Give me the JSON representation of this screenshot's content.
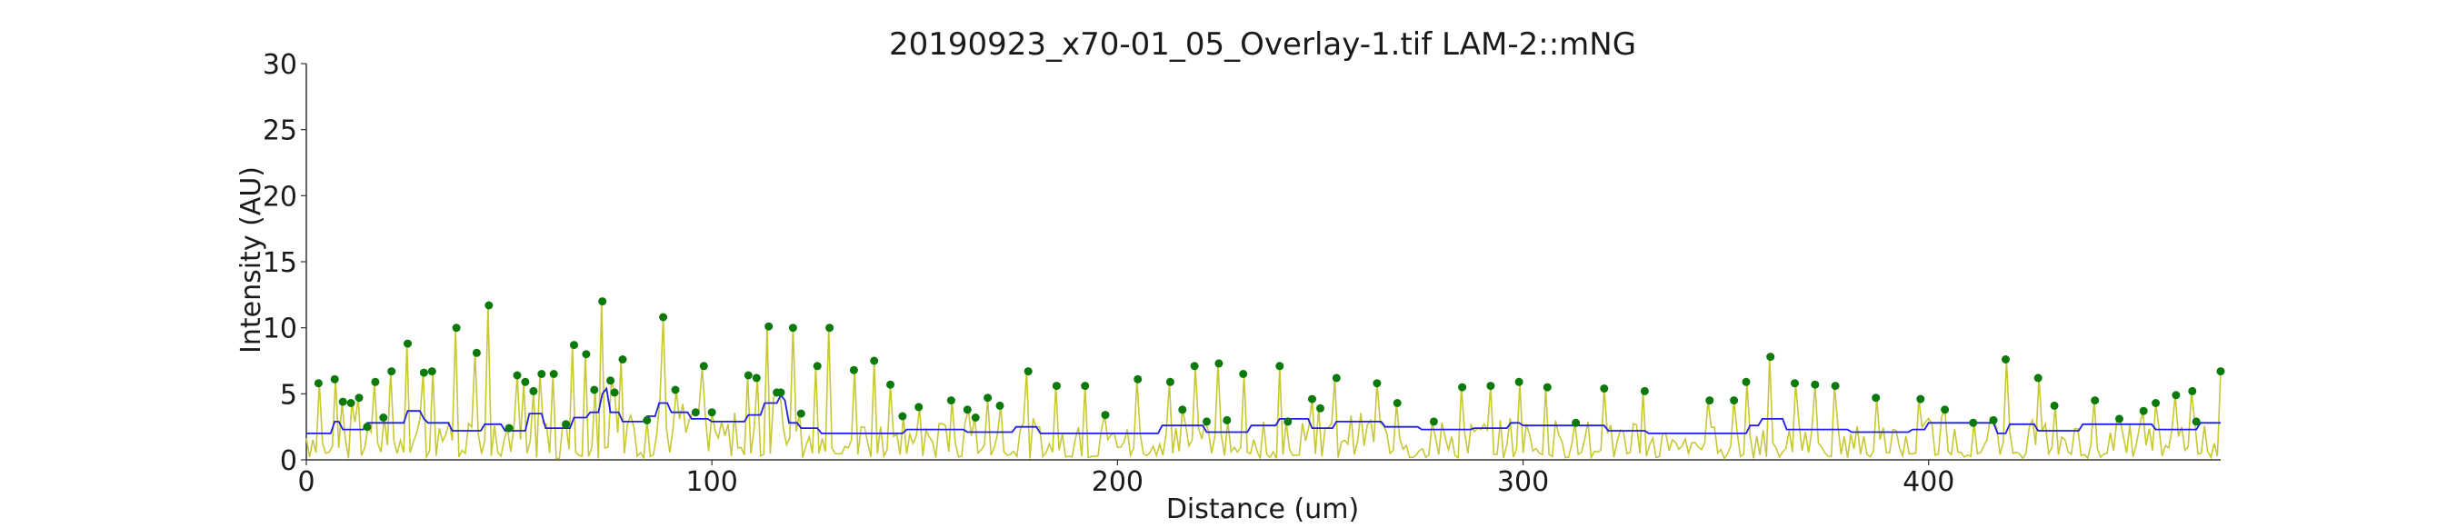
{
  "chart_data": {
    "type": "line",
    "title": "20190923_x70-01_05_Overlay-1.tif LAM-2::mNG",
    "xlabel": "Distance (um)",
    "ylabel": "Intensity (AU)",
    "xlim": [
      0,
      472
    ],
    "ylim": [
      0,
      30
    ],
    "xticks": [
      0,
      100,
      200,
      300,
      400
    ],
    "yticks": [
      0,
      5,
      10,
      15,
      20,
      25,
      30
    ],
    "grid": false,
    "colors": {
      "trace": "#c8c832",
      "baseline": "#1f1fe6",
      "peaks": "#0b7a0b"
    },
    "peaks": [
      {
        "x": 3,
        "y": 5.8
      },
      {
        "x": 7,
        "y": 6.1
      },
      {
        "x": 9,
        "y": 4.4
      },
      {
        "x": 11,
        "y": 4.3
      },
      {
        "x": 13,
        "y": 4.7
      },
      {
        "x": 15,
        "y": 2.5
      },
      {
        "x": 17,
        "y": 5.9
      },
      {
        "x": 19,
        "y": 3.2
      },
      {
        "x": 21,
        "y": 6.7
      },
      {
        "x": 25,
        "y": 8.8
      },
      {
        "x": 29,
        "y": 6.6
      },
      {
        "x": 31,
        "y": 6.7
      },
      {
        "x": 37,
        "y": 10.0
      },
      {
        "x": 42,
        "y": 8.1
      },
      {
        "x": 45,
        "y": 11.7
      },
      {
        "x": 50,
        "y": 2.4
      },
      {
        "x": 52,
        "y": 6.4
      },
      {
        "x": 54,
        "y": 5.9
      },
      {
        "x": 56,
        "y": 5.2
      },
      {
        "x": 58,
        "y": 6.5
      },
      {
        "x": 61,
        "y": 6.5
      },
      {
        "x": 64,
        "y": 2.7
      },
      {
        "x": 66,
        "y": 8.7
      },
      {
        "x": 69,
        "y": 8.0
      },
      {
        "x": 71,
        "y": 5.3
      },
      {
        "x": 73,
        "y": 12.0
      },
      {
        "x": 75,
        "y": 6.0
      },
      {
        "x": 76,
        "y": 5.1
      },
      {
        "x": 78,
        "y": 7.6
      },
      {
        "x": 84,
        "y": 3.0
      },
      {
        "x": 88,
        "y": 10.8
      },
      {
        "x": 91,
        "y": 5.3
      },
      {
        "x": 96,
        "y": 3.6
      },
      {
        "x": 98,
        "y": 7.1
      },
      {
        "x": 100,
        "y": 3.6
      },
      {
        "x": 109,
        "y": 6.4
      },
      {
        "x": 111,
        "y": 6.2
      },
      {
        "x": 114,
        "y": 10.1
      },
      {
        "x": 116,
        "y": 5.1
      },
      {
        "x": 117,
        "y": 5.1
      },
      {
        "x": 120,
        "y": 10.0
      },
      {
        "x": 122,
        "y": 3.5
      },
      {
        "x": 126,
        "y": 7.1
      },
      {
        "x": 129,
        "y": 10.0
      },
      {
        "x": 135,
        "y": 6.8
      },
      {
        "x": 140,
        "y": 7.5
      },
      {
        "x": 144,
        "y": 5.7
      },
      {
        "x": 147,
        "y": 3.3
      },
      {
        "x": 151,
        "y": 4.0
      },
      {
        "x": 159,
        "y": 4.5
      },
      {
        "x": 163,
        "y": 3.8
      },
      {
        "x": 165,
        "y": 3.2
      },
      {
        "x": 168,
        "y": 4.7
      },
      {
        "x": 171,
        "y": 4.1
      },
      {
        "x": 178,
        "y": 6.7
      },
      {
        "x": 185,
        "y": 5.6
      },
      {
        "x": 192,
        "y": 5.6
      },
      {
        "x": 197,
        "y": 3.4
      },
      {
        "x": 205,
        "y": 6.1
      },
      {
        "x": 213,
        "y": 5.9
      },
      {
        "x": 216,
        "y": 3.8
      },
      {
        "x": 219,
        "y": 7.1
      },
      {
        "x": 222,
        "y": 2.9
      },
      {
        "x": 225,
        "y": 7.3
      },
      {
        "x": 227,
        "y": 3.0
      },
      {
        "x": 231,
        "y": 6.5
      },
      {
        "x": 240,
        "y": 7.1
      },
      {
        "x": 242,
        "y": 2.9
      },
      {
        "x": 248,
        "y": 4.6
      },
      {
        "x": 250,
        "y": 3.9
      },
      {
        "x": 254,
        "y": 6.2
      },
      {
        "x": 264,
        "y": 5.8
      },
      {
        "x": 269,
        "y": 4.3
      },
      {
        "x": 278,
        "y": 2.9
      },
      {
        "x": 285,
        "y": 5.5
      },
      {
        "x": 292,
        "y": 5.6
      },
      {
        "x": 299,
        "y": 5.9
      },
      {
        "x": 306,
        "y": 5.5
      },
      {
        "x": 313,
        "y": 2.8
      },
      {
        "x": 320,
        "y": 5.4
      },
      {
        "x": 330,
        "y": 5.2
      },
      {
        "x": 346,
        "y": 4.5
      },
      {
        "x": 352,
        "y": 4.5
      },
      {
        "x": 355,
        "y": 5.9
      },
      {
        "x": 361,
        "y": 7.8
      },
      {
        "x": 367,
        "y": 5.8
      },
      {
        "x": 372,
        "y": 5.7
      },
      {
        "x": 377,
        "y": 5.6
      },
      {
        "x": 387,
        "y": 4.7
      },
      {
        "x": 398,
        "y": 4.6
      },
      {
        "x": 404,
        "y": 3.8
      },
      {
        "x": 411,
        "y": 2.8
      },
      {
        "x": 416,
        "y": 3.0
      },
      {
        "x": 419,
        "y": 7.6
      },
      {
        "x": 427,
        "y": 6.2
      },
      {
        "x": 431,
        "y": 4.1
      },
      {
        "x": 441,
        "y": 4.5
      },
      {
        "x": 447,
        "y": 3.1
      },
      {
        "x": 453,
        "y": 3.7
      },
      {
        "x": 456,
        "y": 4.3
      },
      {
        "x": 461,
        "y": 4.9
      },
      {
        "x": 465,
        "y": 5.2
      },
      {
        "x": 466,
        "y": 2.9
      },
      {
        "x": 472,
        "y": 6.7
      }
    ],
    "series": [
      {
        "name": "",
        "role": "intensity"
      },
      {
        "name": "",
        "role": "baseline",
        "x": [
          0,
          6,
          7,
          8,
          9,
          14,
          15,
          24,
          25,
          28,
          29,
          30,
          35,
          36,
          43,
          44,
          48,
          49,
          54,
          55,
          58,
          59,
          65,
          66,
          69,
          70,
          72,
          73,
          74,
          75,
          77,
          78,
          83,
          84,
          86,
          87,
          89,
          90,
          94,
          95,
          99,
          100,
          108,
          109,
          112,
          113,
          116,
          117,
          118,
          119,
          121,
          122,
          126,
          127,
          147,
          148,
          162,
          163,
          174,
          175,
          180,
          181,
          210,
          211,
          221,
          222,
          232,
          233,
          239,
          240,
          247,
          248,
          253,
          254,
          265,
          266,
          274,
          275,
          287,
          288,
          296,
          297,
          299,
          300,
          320,
          321,
          330,
          331,
          355,
          356,
          358,
          359,
          364,
          365,
          380,
          381,
          395,
          396,
          399,
          400,
          416,
          417,
          419,
          420,
          426,
          427,
          437,
          438,
          455,
          456,
          466,
          467,
          472
        ],
        "y": [
          2.0,
          2.0,
          2.9,
          2.9,
          2.3,
          2.3,
          2.8,
          2.8,
          3.7,
          3.7,
          3.1,
          2.8,
          2.8,
          2.2,
          2.2,
          2.7,
          2.7,
          2.2,
          2.2,
          3.5,
          3.5,
          2.4,
          2.4,
          3.2,
          3.2,
          3.6,
          3.6,
          5.0,
          5.4,
          3.6,
          3.6,
          2.9,
          2.9,
          3.3,
          3.3,
          4.3,
          4.3,
          3.6,
          3.6,
          3.1,
          3.1,
          2.9,
          2.9,
          3.4,
          3.4,
          4.3,
          4.3,
          4.9,
          4.5,
          2.8,
          2.8,
          2.4,
          2.4,
          2.0,
          2.0,
          2.3,
          2.3,
          2.1,
          2.1,
          2.5,
          2.5,
          2.0,
          2.0,
          2.6,
          2.6,
          2.1,
          2.1,
          2.6,
          2.6,
          3.1,
          3.1,
          2.4,
          2.4,
          2.9,
          2.9,
          2.5,
          2.5,
          2.3,
          2.3,
          2.4,
          2.4,
          2.8,
          2.8,
          2.6,
          2.6,
          2.2,
          2.2,
          2.0,
          2.0,
          2.6,
          2.6,
          3.1,
          3.1,
          2.3,
          2.3,
          2.1,
          2.1,
          2.3,
          2.3,
          2.8,
          2.8,
          2.0,
          2.0,
          2.7,
          2.7,
          2.2,
          2.2,
          2.7,
          2.7,
          2.3,
          2.3,
          2.8,
          2.8
        ]
      }
    ]
  }
}
